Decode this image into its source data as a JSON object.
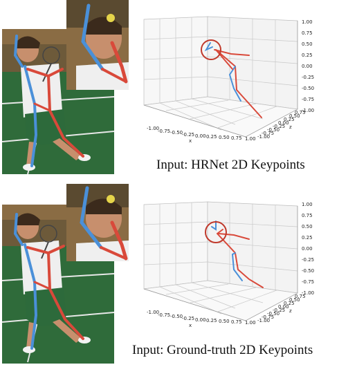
{
  "colors": {
    "left_limb": "#4a90d9",
    "right_limb": "#d9493a",
    "head_circle": "#c0392b",
    "grid": "#c8c8c8",
    "court_green": "#2f6b3a",
    "court_line": "#e8e8e8",
    "shirt": "#efefef",
    "shorts": "#2d6a3b",
    "skin": "#c78f6d"
  },
  "panels": [
    {
      "caption": "Input: HRNet 2D Keypoints",
      "x_ticks": [
        "-1.00",
        "-0.75",
        "-0.50",
        "-0.25",
        "0.00",
        "0.25",
        "0.50",
        "0.75",
        "1.00"
      ],
      "x_label": "x",
      "z_ticks": [
        "1.00",
        "0.75",
        "0.50",
        "0.25",
        "0.00",
        "-0.25",
        "-0.50",
        "-0.75",
        "-1.00"
      ],
      "y_ticks": [
        "-1.00",
        "-0.75",
        "-0.50",
        "-0.25",
        "0.00",
        "0.25",
        "0.50",
        "0.75"
      ],
      "y_label": "z"
    },
    {
      "caption": "Input: Ground-truth 2D Keypoints",
      "x_ticks": [
        "-1.00",
        "-0.75",
        "-0.50",
        "-0.25",
        "0.00",
        "0.25",
        "0.50",
        "0.75",
        "1.00"
      ],
      "x_label": "x",
      "z_ticks": [
        "1.00",
        "0.75",
        "0.50",
        "0.25",
        "0.00",
        "-0.25",
        "-0.50",
        "-0.75",
        "-1.00"
      ],
      "y_ticks": [
        "-1.00",
        "-0.75",
        "-0.50",
        "-0.25",
        "0.00",
        "0.25",
        "0.50",
        "0.75"
      ],
      "y_label": "z"
    }
  ]
}
